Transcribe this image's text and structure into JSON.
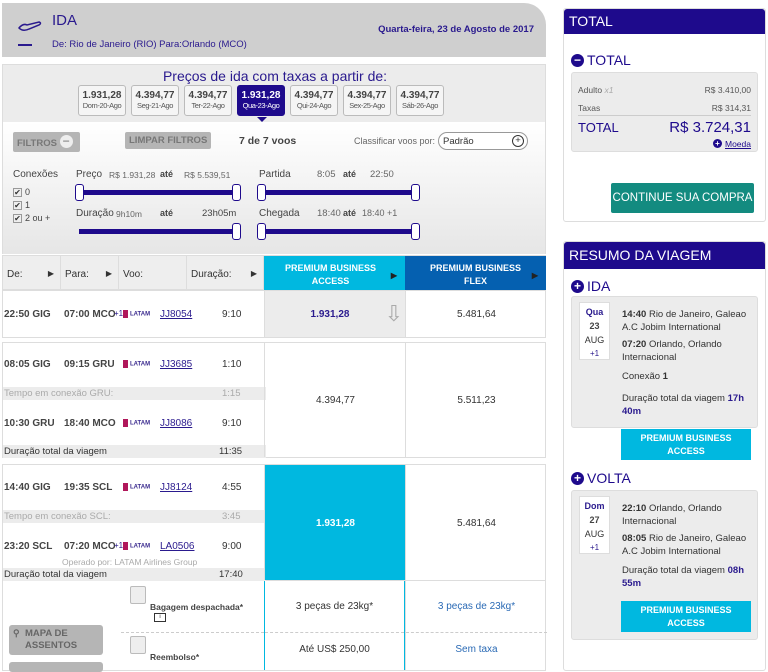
{
  "header": {
    "title": "IDA",
    "route": "De: Rio de Janeiro (RIO) Para:Orlando (MCO)",
    "date": "Quarta-feira, 23 de Agosto de 2017"
  },
  "prices": {
    "title": "Preços de ida com taxas a partir de:",
    "dates": [
      {
        "price": "1.931,28",
        "day": "Dom-20-Ago"
      },
      {
        "price": "4.394,77",
        "day": "Seg-21-Ago"
      },
      {
        "price": "4.394,77",
        "day": "Ter-22-Ago"
      },
      {
        "price": "1.931,28",
        "day": "Qua-23-Ago",
        "selected": true
      },
      {
        "price": "4.394,77",
        "day": "Qui-24-Ago"
      },
      {
        "price": "4.394,77",
        "day": "Sex-25-Ago"
      },
      {
        "price": "4.394,77",
        "day": "Sáb-26-Ago"
      }
    ]
  },
  "filters": {
    "filtros": "FILTROS",
    "limpar": "LIMPAR FILTROS",
    "count": "7 de 7 voos",
    "sort_label": "Classificar voos por:",
    "sort_value": "Padrão",
    "conexoes": "Conexões",
    "conn_options": [
      "0",
      "1",
      "2 ou +"
    ],
    "ate": "até",
    "preco": {
      "label": "Preço",
      "min": "R$ 1.931,28",
      "max": "R$ 5.539,51"
    },
    "partida": {
      "label": "Partida",
      "min": "8:05",
      "max": "22:50"
    },
    "duracao": {
      "label": "Duração",
      "min": "9h10m",
      "max": "23h05m"
    },
    "chegada": {
      "label": "Chegada",
      "min": "18:40",
      "max": "18:40 +1"
    }
  },
  "table": {
    "headers": {
      "de": "De:",
      "para": "Para:",
      "voo": "Voo:",
      "duracao": "Duração:",
      "pba": "PREMIUM BUSINESS ACCESS",
      "pbf": "PREMIUM BUSINESS FLEX"
    },
    "latam": "LATAM",
    "r1": {
      "dep": "22:50 GIG",
      "arr": "07:00 MCO",
      "plus": "+1",
      "flight": "JJ8054",
      "dur": "9:10",
      "pba": "1.931,28",
      "pbf": "5.481,64"
    },
    "r2": {
      "l1": {
        "dep": "08:05 GIG",
        "arr": "09:15 GRU",
        "flight": "JJ3685",
        "dur": "1:10"
      },
      "conn": "Tempo em conexão GRU:",
      "conn_time": "1:15",
      "l2": {
        "dep": "10:30 GRU",
        "arr": "18:40 MCO",
        "flight": "JJ8086",
        "dur": "9:10"
      },
      "total": "Duração total da viagem",
      "total_time": "11:35",
      "pba": "4.394,77",
      "pbf": "5.511,23"
    },
    "r3": {
      "l1": {
        "dep": "14:40 GIG",
        "arr": "19:35 SCL",
        "flight": "JJ8124",
        "dur": "4:55"
      },
      "conn": "Tempo em conexão SCL:",
      "conn_time": "3:45",
      "l2": {
        "dep": "23:20 SCL",
        "arr": "07:20 MCO",
        "plus": "+1",
        "flight": "LA0506",
        "dur": "9:00"
      },
      "operated": "Operado por: LATAM Airlines Group",
      "total": "Duração total da viagem",
      "total_time": "17:40",
      "pba": "1.931,28",
      "pbf": "5.481,64"
    },
    "extras": {
      "seat_map": "MAPA DE ASSENTOS",
      "bag": "Bagagem despachada*",
      "bag_pba": "3 peças de 23kg*",
      "bag_pbf": "3 peças de 23kg*",
      "refund": "Reembolso*",
      "refund_pba": "Até US$ 250,00",
      "refund_pbf": "Sem taxa"
    }
  },
  "total": {
    "header": "TOTAL",
    "section": "TOTAL",
    "adult": "Adulto",
    "adult_mult": "x1",
    "adult_value": "R$ 3.410,00",
    "taxes": "Taxas",
    "taxes_value": "R$ 314,31",
    "total_label": "TOTAL",
    "total_value": "R$ 3.724,31",
    "currency": "Moeda",
    "cta": "CONTINUE SUA COMPRA"
  },
  "summary": {
    "header": "RESUMO DA VIAGEM",
    "ida": {
      "label": "IDA",
      "dow": "Qua",
      "day": "23",
      "month": "AUG",
      "plus": "+1",
      "dep_time": "14:40",
      "dep_place": "Rio de Janeiro, Galeao A.C Jobim International",
      "arr_time": "07:20",
      "arr_place": "Orlando, Orlando Internacional",
      "conn_label": "Conexão",
      "conn": "1",
      "dur_label": "Duração total da viagem",
      "dur": "17h 40m",
      "fare": "PREMIUM BUSINESS ACCESS"
    },
    "volta": {
      "label": "VOLTA",
      "dow": "Dom",
      "day": "27",
      "month": "AUG",
      "plus": "+1",
      "dep_time": "22:10",
      "dep_place": "Orlando, Orlando Internacional",
      "arr_time": "08:05",
      "arr_place": "Rio de Janeiro, Galeao A.C Jobim International",
      "dur_label": "Duração total da viagem",
      "dur": "08h 55m",
      "fare": "PREMIUM BUSINESS ACCESS"
    }
  },
  "colors": {
    "brand": "#1e0a8c",
    "cyan": "#00b8e0",
    "flex": "#0560b0",
    "cta": "#138b80"
  }
}
